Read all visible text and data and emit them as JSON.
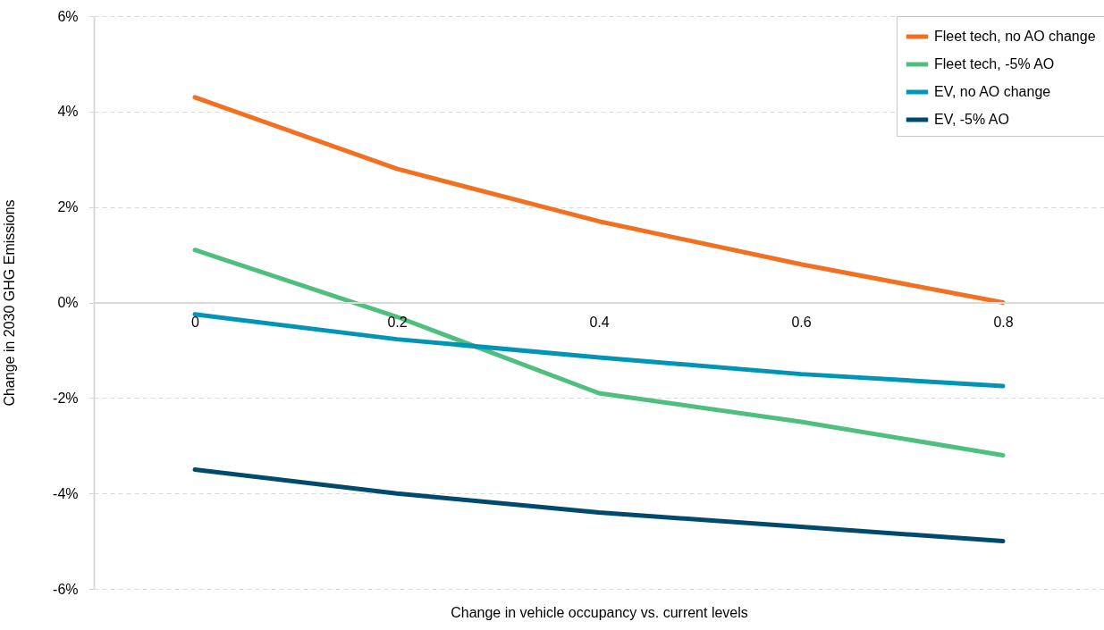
{
  "chart_data": {
    "type": "line",
    "xlabel": "Change in vehicle occupancy vs. current levels",
    "ylabel": "Change in 2030 GHG Emissions",
    "categories": [
      "0",
      "0.2",
      "0.4",
      "0.6",
      "0.8"
    ],
    "ylim": [
      -6,
      6
    ],
    "yticks": [
      {
        "value": -6,
        "label": "-6%"
      },
      {
        "value": -4,
        "label": "-4%"
      },
      {
        "value": -2,
        "label": "-2%"
      },
      {
        "value": 0,
        "label": "0%"
      },
      {
        "value": 2,
        "label": "2%"
      },
      {
        "value": 4,
        "label": "4%"
      },
      {
        "value": 6,
        "label": "6%"
      }
    ],
    "grid": "y",
    "legend": "top right",
    "marker": "none",
    "line_style": "solid",
    "series": [
      {
        "name": "Fleet tech, no AO change",
        "color": "#f37021",
        "values": [
          4.3,
          2.8,
          1.7,
          0.8,
          0
        ]
      },
      {
        "name": "Fleet tech, -5% AO",
        "color": "#4fbf7f",
        "values": [
          1.1,
          -0.3,
          -1.9,
          -2.5,
          -3.2
        ]
      },
      {
        "name": "EV, no AO change",
        "color": "#0095b6",
        "values": [
          -0.25,
          -0.77,
          -1.15,
          -1.5,
          -1.75
        ]
      },
      {
        "name": "EV, -5% AO",
        "color": "#004a6e",
        "values": [
          -3.5,
          -4.0,
          -4.4,
          -4.7,
          -5.0
        ]
      }
    ]
  }
}
